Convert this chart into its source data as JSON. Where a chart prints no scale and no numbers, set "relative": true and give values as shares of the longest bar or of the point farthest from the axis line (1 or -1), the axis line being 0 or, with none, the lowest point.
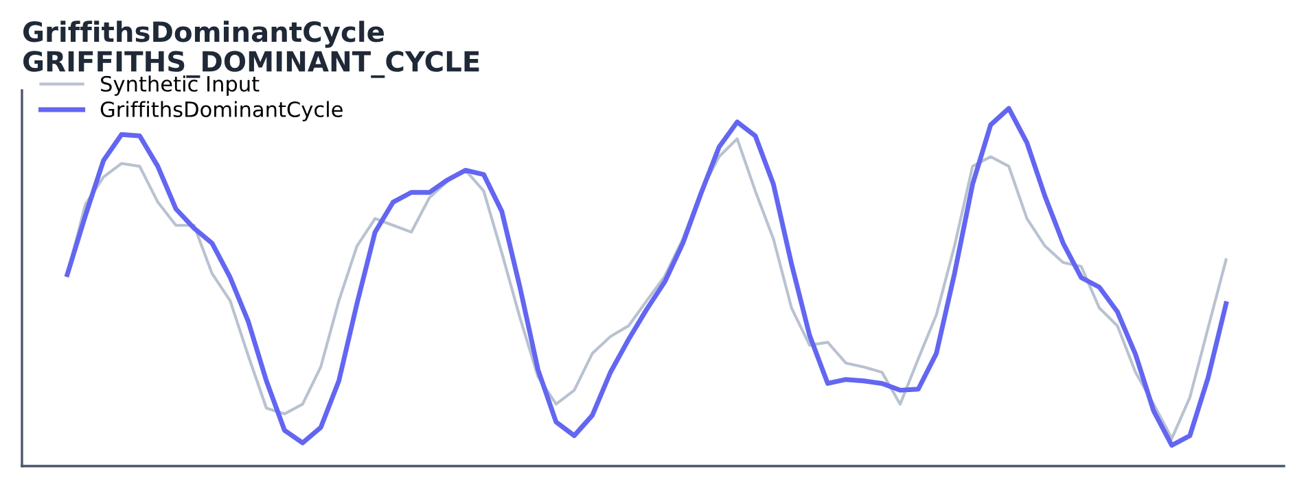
{
  "chart_data": {
    "type": "line",
    "title": "GriffithsDominantCycle",
    "subtitle": "GRIFFITHS_DOMINANT_CYCLE",
    "relative": true,
    "legend": "top left",
    "categories": [
      null,
      null,
      null,
      null,
      null,
      null,
      null,
      null,
      null,
      null,
      null,
      null,
      null,
      null,
      null,
      null,
      null,
      null,
      null,
      null,
      null,
      null,
      null,
      null,
      null,
      null,
      null,
      null,
      null,
      null,
      null,
      null,
      null,
      null,
      null,
      null,
      null,
      null,
      null,
      null,
      null,
      null,
      null,
      null,
      null,
      null,
      null,
      null,
      null,
      null,
      null,
      null,
      null,
      null,
      null,
      null,
      null,
      null,
      null,
      null,
      null,
      null,
      null,
      null,
      null
    ],
    "series": [
      {
        "name": "Synthetic Input",
        "color": "#b8c2d0",
        "values": [
          0.535,
          0.731,
          0.808,
          0.846,
          0.838,
          0.738,
          0.673,
          0.673,
          0.538,
          0.462,
          0.308,
          0.162,
          0.146,
          0.173,
          0.277,
          0.462,
          0.615,
          0.692,
          0.673,
          0.654,
          0.75,
          0.796,
          0.827,
          0.769,
          0.596,
          0.415,
          0.25,
          0.173,
          0.212,
          0.315,
          0.362,
          0.392,
          0.462,
          0.531,
          0.635,
          0.769,
          0.865,
          0.915,
          0.769,
          0.635,
          0.442,
          0.338,
          0.346,
          0.288,
          0.277,
          0.262,
          0.173,
          0.3,
          0.423,
          0.615,
          0.838,
          0.865,
          0.838,
          0.692,
          0.615,
          0.569,
          0.558,
          0.442,
          0.392,
          0.262,
          0.173,
          0.077,
          0.192,
          0.385,
          0.577
        ]
      },
      {
        "name": "GriffithsDominantCycle",
        "color": "#6366f1",
        "values": [
          0.535,
          0.7,
          0.854,
          0.927,
          0.923,
          0.838,
          0.719,
          0.665,
          0.623,
          0.527,
          0.404,
          0.238,
          0.1,
          0.065,
          0.108,
          0.238,
          0.454,
          0.654,
          0.738,
          0.765,
          0.765,
          0.8,
          0.827,
          0.815,
          0.712,
          0.5,
          0.269,
          0.123,
          0.085,
          0.142,
          0.262,
          0.354,
          0.438,
          0.515,
          0.623,
          0.762,
          0.892,
          0.962,
          0.923,
          0.788,
          0.565,
          0.365,
          0.231,
          0.242,
          0.238,
          0.231,
          0.212,
          0.215,
          0.315,
          0.538,
          0.788,
          0.954,
          1.0,
          0.904,
          0.754,
          0.623,
          0.527,
          0.5,
          0.431,
          0.312,
          0.154,
          0.058,
          0.085,
          0.246,
          0.454
        ]
      }
    ]
  }
}
